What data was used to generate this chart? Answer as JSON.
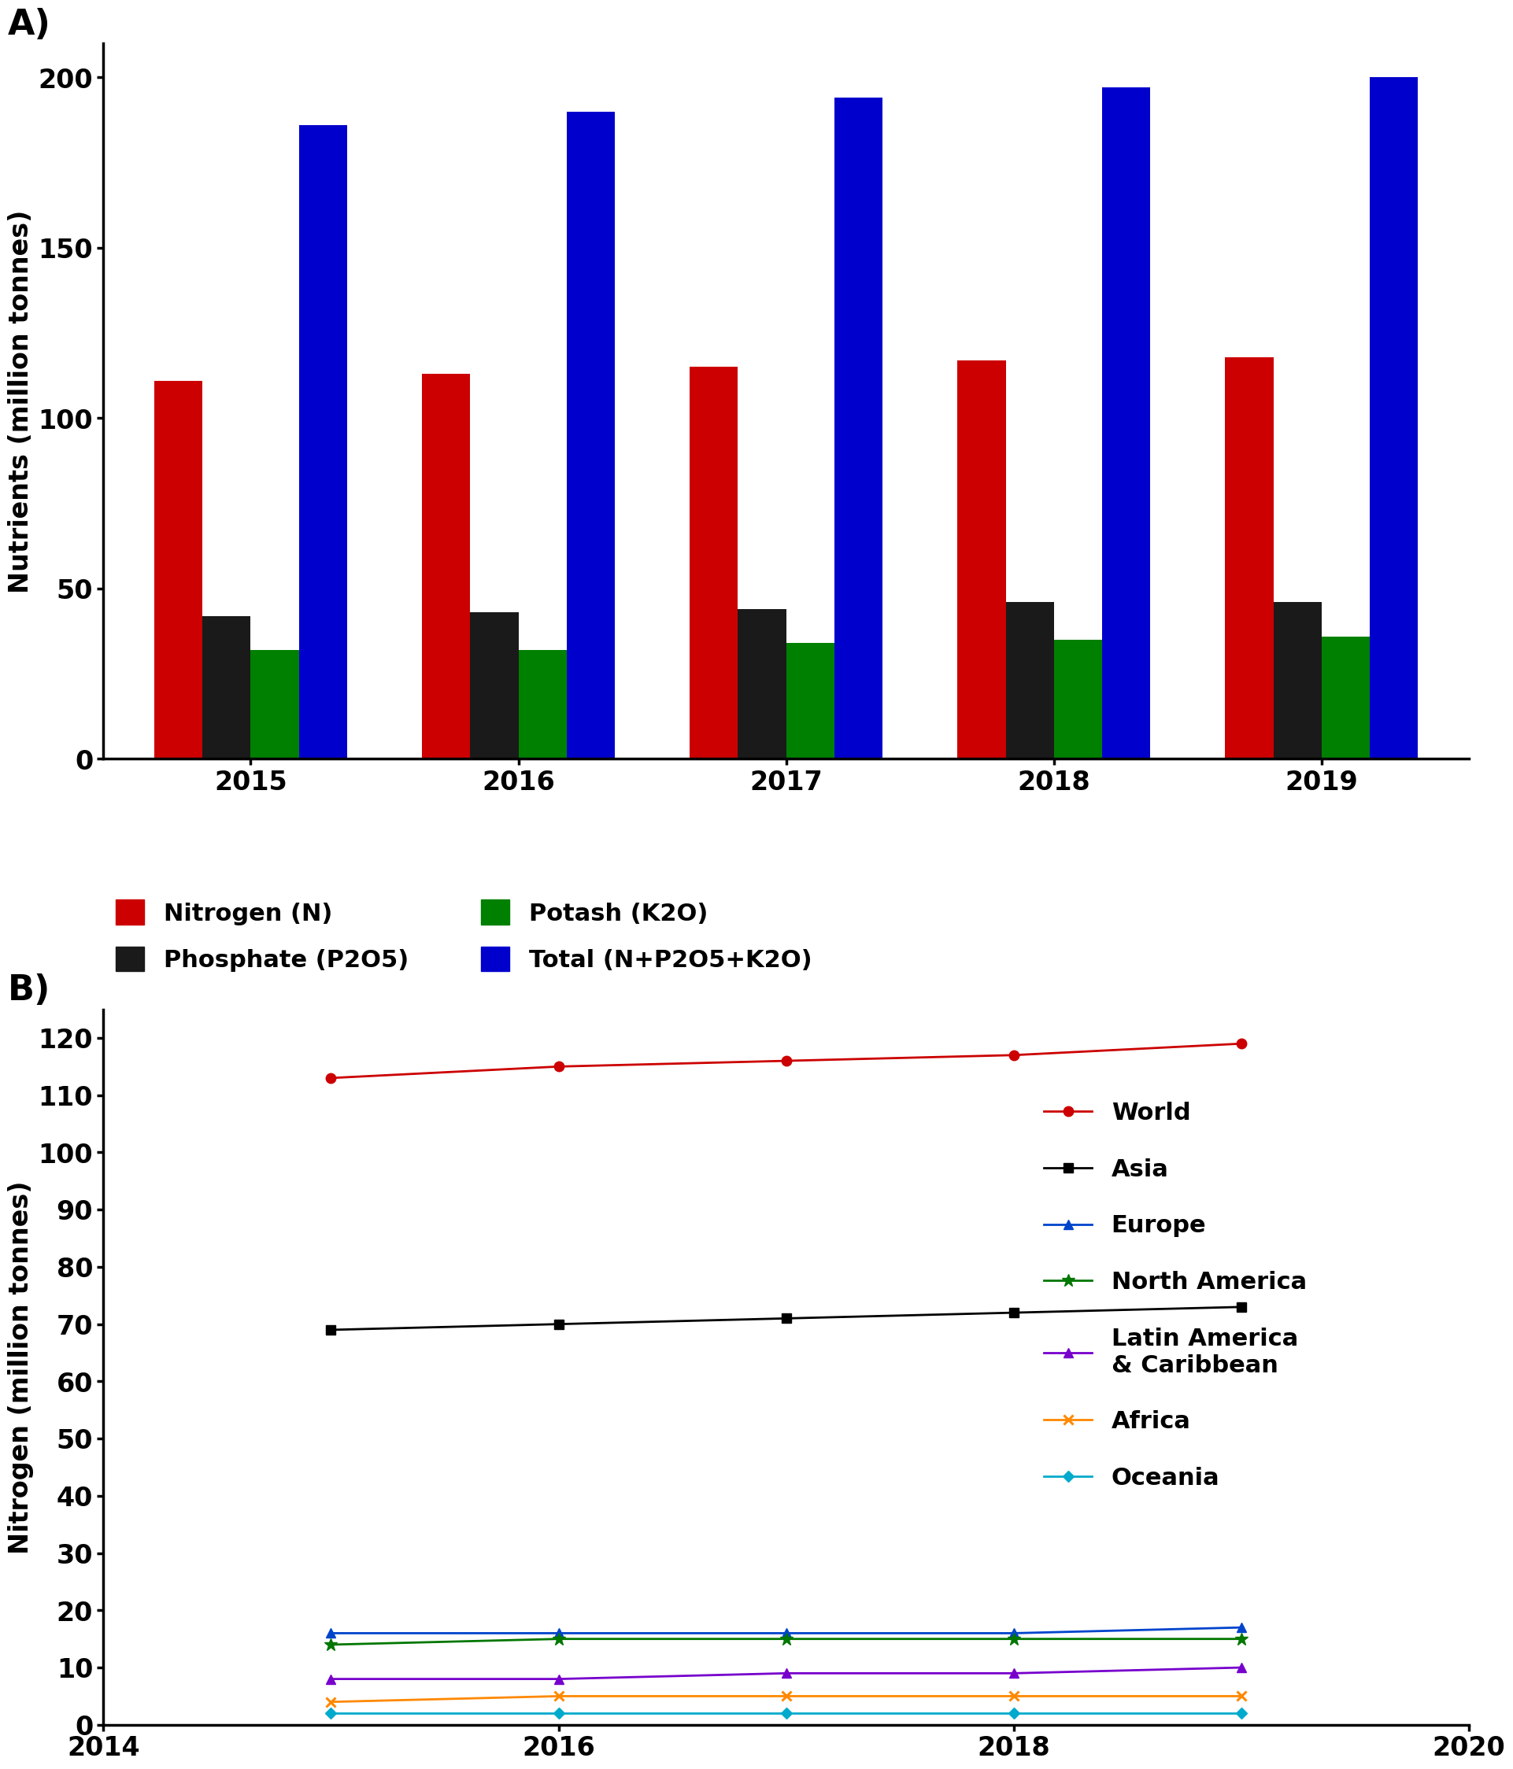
{
  "bar_years": [
    2015,
    2016,
    2017,
    2018,
    2019
  ],
  "nitrogen": [
    111,
    113,
    115,
    117,
    118
  ],
  "phosphate": [
    42,
    43,
    44,
    46,
    46
  ],
  "potash": [
    32,
    32,
    34,
    35,
    36
  ],
  "total": [
    186,
    190,
    194,
    197,
    200
  ],
  "bar_colors": {
    "nitrogen": "#cc0000",
    "phosphate": "#1a1a1a",
    "potash": "#008000",
    "total": "#0000cc"
  },
  "bar_ylim": [
    0,
    210
  ],
  "bar_yticks": [
    0,
    50,
    100,
    150,
    200
  ],
  "bar_ylabel": "Nutrients (million tonnes)",
  "line_years": [
    2015,
    2016,
    2017,
    2018,
    2019
  ],
  "world": [
    113,
    115,
    116,
    117,
    119
  ],
  "asia": [
    69,
    70,
    71,
    72,
    73
  ],
  "europe": [
    16,
    16,
    16,
    16,
    17
  ],
  "north_america": [
    14,
    15,
    15,
    15,
    15
  ],
  "latin_america": [
    8,
    8,
    9,
    9,
    10
  ],
  "africa": [
    4,
    5,
    5,
    5,
    5
  ],
  "oceania": [
    2,
    2,
    2,
    2,
    2
  ],
  "line_colors": {
    "world": "#cc0000",
    "asia": "#000000",
    "europe": "#0044cc",
    "north_america": "#007700",
    "latin_america": "#7700cc",
    "africa": "#ff8800",
    "oceania": "#00aacc"
  },
  "line_ylim": [
    0,
    125
  ],
  "line_yticks": [
    0,
    10,
    20,
    30,
    40,
    50,
    60,
    70,
    80,
    90,
    100,
    110,
    120
  ],
  "line_xlim": [
    2014,
    2020
  ],
  "line_xticks": [
    2014,
    2016,
    2018,
    2020
  ],
  "line_ylabel": "Nitrogen (million tonnes)"
}
